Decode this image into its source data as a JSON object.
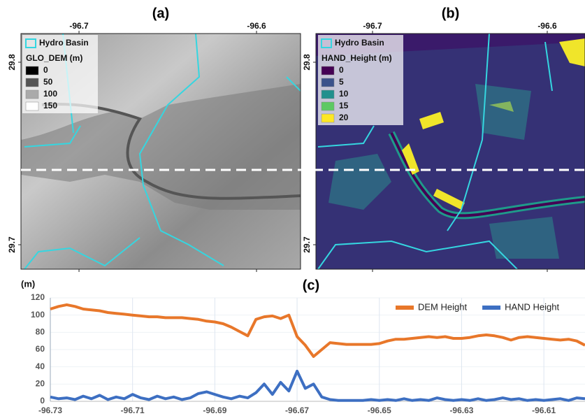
{
  "maps": [
    {
      "label": "(a)",
      "xlim": [
        -96.7327,
        -96.5752
      ],
      "ylim": [
        29.6866,
        29.8157
      ],
      "xticks": [
        -96.7,
        -96.6
      ],
      "yticks": [
        29.7,
        29.8
      ],
      "basin_label": "Hydro Basin",
      "legend_title": "GLO_DEM (m)",
      "legend": [
        {
          "value": 0,
          "color": "#000000"
        },
        {
          "value": 50,
          "color": "#555555"
        },
        {
          "value": 100,
          "color": "#aaaaaa"
        },
        {
          "value": 150,
          "color": "#ffffff"
        }
      ]
    },
    {
      "label": "(b)",
      "xlim": [
        -96.7324,
        -96.5784
      ],
      "ylim": [
        29.6866,
        29.8157
      ],
      "xticks": [
        -96.7,
        -96.6
      ],
      "yticks": [
        29.7,
        29.8
      ],
      "basin_label": "Hydro Basin",
      "legend_title": "HAND_Height (m)",
      "legend": [
        {
          "value": 0,
          "color": "#440154"
        },
        {
          "value": 5,
          "color": "#3b528b"
        },
        {
          "value": 10,
          "color": "#21908d"
        },
        {
          "value": 15,
          "color": "#5dc963"
        },
        {
          "value": 20,
          "color": "#fde725"
        }
      ]
    }
  ],
  "chart_data": {
    "type": "line",
    "title": "(c)",
    "y_label": "(m)",
    "x": [
      -96.73,
      -96.728,
      -96.726,
      -96.724,
      -96.722,
      -96.72,
      -96.718,
      -96.716,
      -96.714,
      -96.712,
      -96.71,
      -96.708,
      -96.706,
      -96.704,
      -96.702,
      -96.7,
      -96.698,
      -96.696,
      -96.694,
      -96.692,
      -96.69,
      -96.688,
      -96.686,
      -96.684,
      -96.682,
      -96.68,
      -96.678,
      -96.676,
      -96.674,
      -96.672,
      -96.67,
      -96.668,
      -96.666,
      -96.664,
      -96.662,
      -96.66,
      -96.658,
      -96.656,
      -96.654,
      -96.652,
      -96.65,
      -96.648,
      -96.646,
      -96.644,
      -96.642,
      -96.64,
      -96.638,
      -96.636,
      -96.634,
      -96.632,
      -96.63,
      -96.628,
      -96.626,
      -96.624,
      -96.622,
      -96.62,
      -96.618,
      -96.616,
      -96.614,
      -96.612,
      -96.61,
      -96.608,
      -96.606,
      -96.604,
      -96.602,
      -96.6
    ],
    "series": [
      {
        "name": "DEM Height",
        "color": "#e8772a",
        "values": [
          107,
          110,
          112,
          110,
          107,
          106,
          105,
          103,
          102,
          101,
          100,
          99,
          98,
          98,
          97,
          97,
          97,
          96,
          95,
          93,
          92,
          90,
          86,
          81,
          76,
          95,
          98,
          99,
          96,
          100,
          75,
          65,
          52,
          60,
          68,
          67,
          66,
          66,
          66,
          66,
          67,
          70,
          72,
          72,
          73,
          74,
          75,
          74,
          75,
          73,
          73,
          74,
          76,
          77,
          76,
          74,
          71,
          74,
          75,
          74,
          73,
          72,
          71,
          72,
          70,
          65
        ]
      },
      {
        "name": "HAND Height",
        "color": "#3d6fc2",
        "values": [
          5,
          3,
          4,
          2,
          6,
          3,
          7,
          2,
          5,
          3,
          8,
          4,
          2,
          6,
          3,
          5,
          2,
          4,
          9,
          11,
          8,
          5,
          3,
          6,
          4,
          10,
          20,
          8,
          22,
          12,
          35,
          15,
          20,
          5,
          2,
          1,
          1,
          1,
          1,
          2,
          1,
          2,
          1,
          3,
          1,
          2,
          1,
          4,
          2,
          1,
          2,
          1,
          3,
          1,
          2,
          4,
          2,
          3,
          1,
          2,
          1,
          2,
          3,
          1,
          4,
          3
        ]
      }
    ],
    "xlim": [
      -96.73,
      -96.6
    ],
    "ylim": [
      0,
      120
    ],
    "xticks": [
      -96.73,
      -96.71,
      -96.69,
      -96.67,
      -96.65,
      -96.63,
      -96.61
    ],
    "yticks": [
      0,
      20,
      40,
      60,
      80,
      100,
      120
    ],
    "grid": true,
    "legend": "upper right"
  }
}
